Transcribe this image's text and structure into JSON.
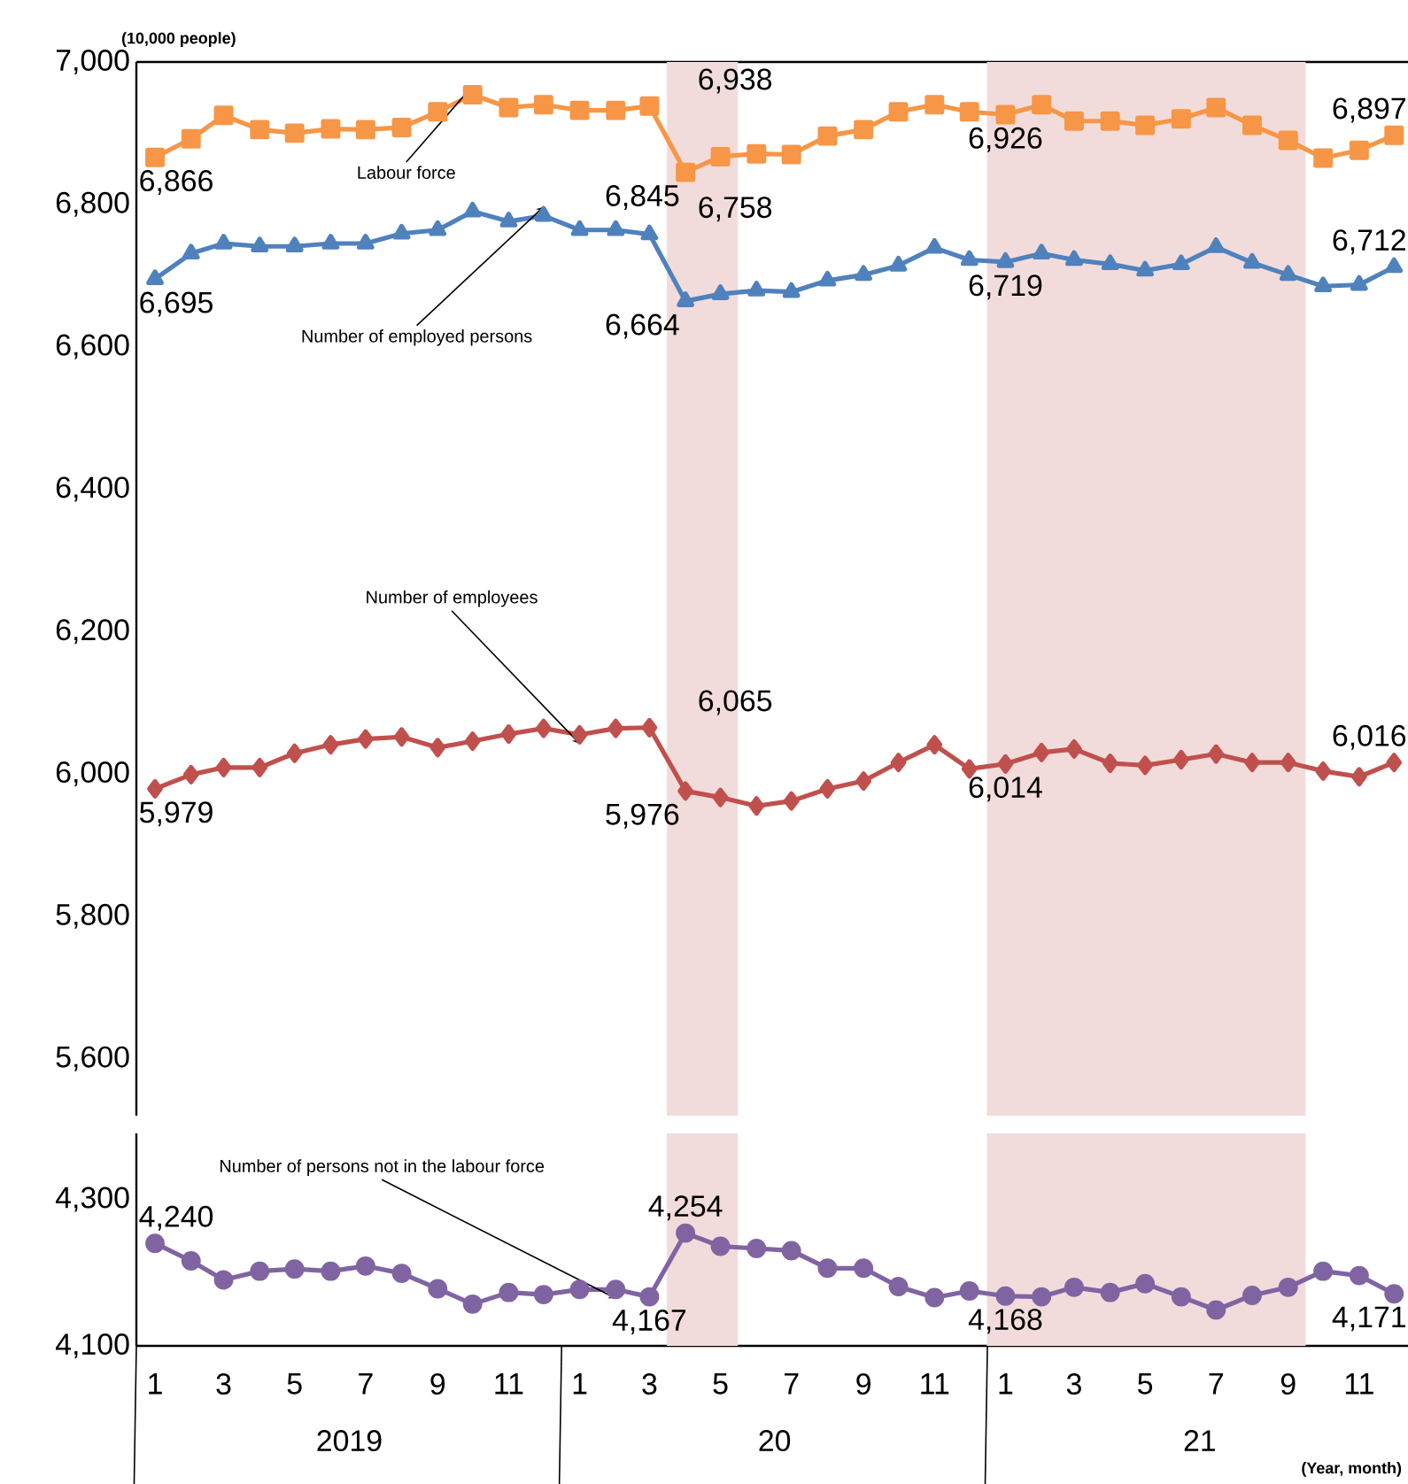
{
  "chart_data": [
    {
      "type": "line",
      "ylabel": "(10,000 people)",
      "tick_labels": "y",
      "line_style": "solid",
      "grid": false,
      "xlim": [
        "2018-12-16",
        "2021-12-13"
      ],
      "ylim": [
        5520,
        7000
      ],
      "yticks": [
        {
          "value": 5600,
          "label": "5,600"
        },
        {
          "value": 5800,
          "label": "5,800"
        },
        {
          "value": 6000,
          "label": "6,000"
        },
        {
          "value": 6200,
          "label": "6,200"
        },
        {
          "value": 6400,
          "label": "6,400"
        },
        {
          "value": 6600,
          "label": "6,600"
        },
        {
          "value": 6800,
          "label": "6,800"
        },
        {
          "value": 7000,
          "label": "7,000"
        }
      ],
      "x": [
        "2019-01",
        "2019-02",
        "2019-03",
        "2019-04",
        "2019-05",
        "2019-06",
        "2019-07",
        "2019-08",
        "2019-09",
        "2019-10",
        "2019-11",
        "2019-12",
        "2020-01",
        "2020-02",
        "2020-03",
        "2020-04",
        "2020-05",
        "2020-06",
        "2020-07",
        "2020-08",
        "2020-09",
        "2020-10",
        "2020-11",
        "2020-12",
        "2021-01",
        "2021-02",
        "2021-03",
        "2021-04",
        "2021-05",
        "2021-06",
        "2021-07",
        "2021-08",
        "2021-09",
        "2021-10",
        "2021-11",
        "2021-12"
      ],
      "bands": [
        {
          "axis": "x",
          "from": "2020-03-16",
          "to": "2020-05-16",
          "color": "#f2dcdb"
        },
        {
          "axis": "x",
          "from": "2020-12-16",
          "to": "2021-09-16",
          "color": "#f2dcdb"
        }
      ],
      "series": [
        {
          "name": "Labour force",
          "color": "#f79646",
          "marker": "square",
          "values": [
            6866,
            6892,
            6925,
            6905,
            6900,
            6906,
            6905,
            6908,
            6930,
            6954,
            6936,
            6940,
            6932,
            6932,
            6938,
            6845,
            6867,
            6871,
            6870,
            6896,
            6905,
            6930,
            6940,
            6930,
            6926,
            6940,
            6917,
            6917,
            6911,
            6920,
            6936,
            6911,
            6890,
            6865,
            6876,
            6897
          ],
          "value_labels": [
            "6,866",
            null,
            null,
            null,
            null,
            null,
            null,
            null,
            null,
            null,
            null,
            null,
            null,
            null,
            "6,938",
            "6,845",
            null,
            null,
            null,
            null,
            null,
            null,
            null,
            null,
            "6,926",
            null,
            null,
            null,
            null,
            null,
            null,
            null,
            null,
            null,
            null,
            "6,897"
          ]
        },
        {
          "name": "Number of employed  persons",
          "color": "#4f81bd",
          "marker": "triangle",
          "values": [
            6695,
            6731,
            6745,
            6741,
            6741,
            6745,
            6745,
            6759,
            6764,
            6790,
            6776,
            6784,
            6764,
            6764,
            6758,
            6664,
            6674,
            6679,
            6677,
            6693,
            6701,
            6714,
            6739,
            6722,
            6719,
            6731,
            6722,
            6716,
            6707,
            6716,
            6740,
            6718,
            6701,
            6685,
            6687,
            6712
          ],
          "value_labels": [
            "6,695",
            null,
            null,
            null,
            null,
            null,
            null,
            null,
            null,
            null,
            null,
            null,
            null,
            null,
            "6,758",
            "6,664",
            null,
            null,
            null,
            null,
            null,
            null,
            null,
            null,
            "6,719",
            null,
            null,
            null,
            null,
            null,
            null,
            null,
            null,
            null,
            null,
            "6,712"
          ]
        },
        {
          "name": "Number of employees",
          "color": "#c0504d",
          "marker": "diamond",
          "values": [
            5979,
            5999,
            6009,
            6009,
            6029,
            6041,
            6049,
            6052,
            6037,
            6046,
            6056,
            6064,
            6055,
            6064,
            6065,
            5976,
            5967,
            5955,
            5962,
            5979,
            5990,
            6016,
            6041,
            6007,
            6014,
            6030,
            6035,
            6015,
            6012,
            6020,
            6028,
            6016,
            6016,
            6004,
            5996,
            6016
          ],
          "value_labels": [
            "5,979",
            null,
            null,
            null,
            null,
            null,
            null,
            null,
            null,
            null,
            null,
            null,
            null,
            null,
            "6,065",
            "5,976",
            null,
            null,
            null,
            null,
            null,
            null,
            null,
            null,
            "6,014",
            null,
            null,
            null,
            null,
            null,
            null,
            null,
            null,
            null,
            null,
            "6,016"
          ]
        }
      ]
    },
    {
      "type": "line",
      "xlabel": "(Year, month)",
      "line_style": "solid",
      "grid": false,
      "xlim": [
        "2018-12-16",
        "2021-12-13"
      ],
      "ylim": [
        4100,
        4390
      ],
      "yticks": [
        {
          "value": 4100,
          "label": "4,100"
        },
        {
          "value": 4300,
          "label": "4,300"
        }
      ],
      "xticks": [
        {
          "value": "2019-01",
          "label": "1"
        },
        {
          "value": "2019-03",
          "label": "3"
        },
        {
          "value": "2019-05",
          "label": "5"
        },
        {
          "value": "2019-07",
          "label": "7"
        },
        {
          "value": "2019-09",
          "label": "9"
        },
        {
          "value": "2019-11",
          "label": "11"
        },
        {
          "value": "2020-01",
          "label": "1"
        },
        {
          "value": "2020-03",
          "label": "3"
        },
        {
          "value": "2020-05",
          "label": "5"
        },
        {
          "value": "2020-07",
          "label": "7"
        },
        {
          "value": "2020-09",
          "label": "9"
        },
        {
          "value": "2020-11",
          "label": "11"
        },
        {
          "value": "2021-01",
          "label": "1"
        },
        {
          "value": "2021-03",
          "label": "3"
        },
        {
          "value": "2021-05",
          "label": "5"
        },
        {
          "value": "2021-07",
          "label": "7"
        },
        {
          "value": "2021-09",
          "label": "9"
        },
        {
          "value": "2021-11",
          "label": "11"
        }
      ],
      "annotations": [
        "2019",
        "20",
        "21"
      ],
      "x": [
        "2019-01",
        "2019-02",
        "2019-03",
        "2019-04",
        "2019-05",
        "2019-06",
        "2019-07",
        "2019-08",
        "2019-09",
        "2019-10",
        "2019-11",
        "2019-12",
        "2020-01",
        "2020-02",
        "2020-03",
        "2020-04",
        "2020-05",
        "2020-06",
        "2020-07",
        "2020-08",
        "2020-09",
        "2020-10",
        "2020-11",
        "2020-12",
        "2021-01",
        "2021-02",
        "2021-03",
        "2021-04",
        "2021-05",
        "2021-06",
        "2021-07",
        "2021-08",
        "2021-09",
        "2021-10",
        "2021-11",
        "2021-12"
      ],
      "bands": [
        {
          "axis": "x",
          "from": "2020-03-16",
          "to": "2020-05-16",
          "color": "#f2dcdb"
        },
        {
          "axis": "x",
          "from": "2020-12-16",
          "to": "2021-09-16",
          "color": "#f2dcdb"
        }
      ],
      "series": [
        {
          "name": "Number of persons not in the labour force",
          "color": "#8064a2",
          "marker": "circle",
          "values": [
            4240,
            4216,
            4190,
            4202,
            4205,
            4202,
            4209,
            4199,
            4178,
            4157,
            4173,
            4170,
            4177,
            4177,
            4167,
            4254,
            4236,
            4233,
            4230,
            4206,
            4206,
            4181,
            4166,
            4175,
            4168,
            4167,
            4180,
            4173,
            4185,
            4167,
            4149,
            4169,
            4180,
            4202,
            4196,
            4171
          ],
          "value_labels": [
            "4,240",
            null,
            null,
            null,
            null,
            null,
            null,
            null,
            null,
            null,
            null,
            null,
            null,
            null,
            "4,167",
            "4,254",
            null,
            null,
            null,
            null,
            null,
            null,
            null,
            null,
            "4,168",
            null,
            null,
            null,
            null,
            null,
            null,
            null,
            null,
            null,
            null,
            "4,171"
          ]
        }
      ]
    }
  ]
}
